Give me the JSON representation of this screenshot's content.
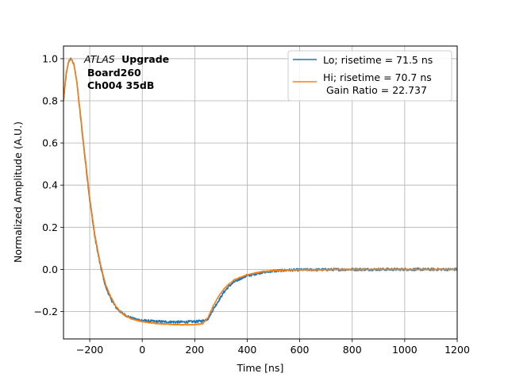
{
  "chart_data": {
    "type": "line",
    "xlabel": "Time [ns]",
    "ylabel": "Normalized Amplitude (A.U.)",
    "xlim": [
      -300,
      1200
    ],
    "ylim": [
      -0.33,
      1.06
    ],
    "xticks": [
      -200,
      0,
      200,
      400,
      600,
      800,
      1000,
      1200
    ],
    "xtick_labels": [
      "−200",
      "0",
      "200",
      "400",
      "600",
      "800",
      "1000",
      "1200"
    ],
    "yticks": [
      -0.2,
      0.0,
      0.2,
      0.4,
      0.6,
      0.8,
      1.0
    ],
    "ytick_labels": [
      "−0.2",
      "0.0",
      "0.2",
      "0.4",
      "0.6",
      "0.8",
      "1.0"
    ],
    "grid": true,
    "legend_position": "top-right",
    "annotation": {
      "italic": "ATLAS",
      "bold": "Upgrade",
      "line2": "Board260",
      "line3": "Ch004 35dB"
    },
    "series": [
      {
        "name": "Lo; risetime = 71.5 ns",
        "color": "#1f77b4",
        "noise": 0.006,
        "x": [
          -300,
          -290,
          -280,
          -270,
          -260,
          -250,
          -240,
          -220,
          -200,
          -180,
          -160,
          -140,
          -120,
          -100,
          -80,
          -60,
          -40,
          -20,
          0,
          20,
          50,
          100,
          150,
          200,
          230,
          250,
          270,
          290,
          310,
          330,
          350,
          380,
          400,
          420,
          450,
          500,
          550,
          600,
          700,
          800,
          900,
          1000,
          1100,
          1200
        ],
        "y": [
          0.8,
          0.92,
          0.99,
          1.0,
          0.97,
          0.9,
          0.78,
          0.55,
          0.33,
          0.15,
          0.02,
          -0.08,
          -0.14,
          -0.18,
          -0.205,
          -0.22,
          -0.232,
          -0.238,
          -0.242,
          -0.245,
          -0.247,
          -0.249,
          -0.25,
          -0.248,
          -0.245,
          -0.235,
          -0.19,
          -0.15,
          -0.11,
          -0.08,
          -0.06,
          -0.04,
          -0.03,
          -0.025,
          -0.015,
          -0.008,
          -0.004,
          -0.002,
          -0.001,
          0.0,
          0.0,
          0.0,
          0.0,
          0.0
        ]
      },
      {
        "name": "Hi; risetime = 70.7 ns",
        "name_line2": " Gain Ratio = 22.737",
        "color": "#ff7f0e",
        "noise": 0.002,
        "x": [
          -300,
          -290,
          -280,
          -270,
          -260,
          -250,
          -240,
          -220,
          -200,
          -180,
          -160,
          -140,
          -120,
          -100,
          -80,
          -60,
          -40,
          -20,
          0,
          20,
          50,
          100,
          150,
          200,
          230,
          250,
          270,
          290,
          310,
          330,
          350,
          380,
          400,
          420,
          450,
          500,
          550,
          600,
          700,
          800,
          900,
          1000,
          1100,
          1200
        ],
        "y": [
          0.8,
          0.93,
          0.99,
          1.0,
          0.97,
          0.9,
          0.79,
          0.56,
          0.34,
          0.16,
          0.03,
          -0.07,
          -0.13,
          -0.175,
          -0.205,
          -0.222,
          -0.235,
          -0.242,
          -0.248,
          -0.252,
          -0.256,
          -0.26,
          -0.263,
          -0.262,
          -0.258,
          -0.23,
          -0.175,
          -0.13,
          -0.095,
          -0.07,
          -0.05,
          -0.035,
          -0.025,
          -0.02,
          -0.012,
          -0.006,
          -0.003,
          -0.002,
          -0.001,
          0.0,
          0.0,
          0.0,
          0.0,
          0.0
        ]
      }
    ]
  }
}
